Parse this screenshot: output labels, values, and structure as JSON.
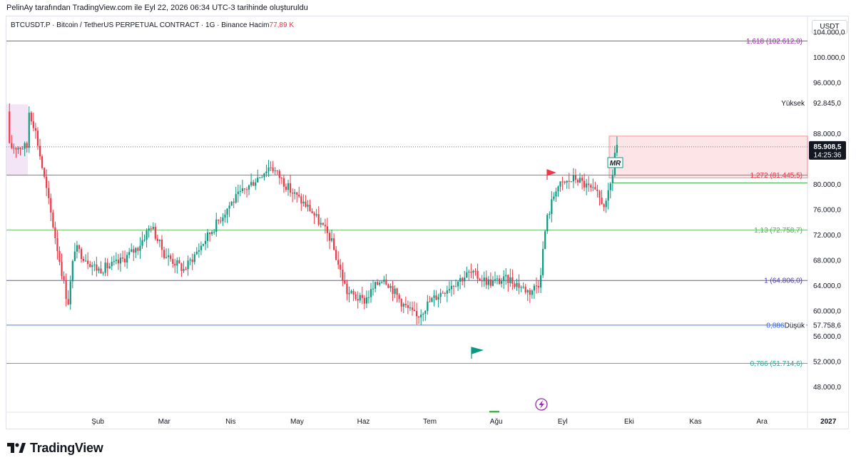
{
  "header": {
    "note": "PelinAy tarafından TradingView.com ile Eyl 22, 2026 06:34 UTC-3 tarihinde oluşturuldu"
  },
  "symbol": {
    "text": "BTCUSDT.P · Bitcoin / TetherUS PERPETUAL CONTRACT · 1G · Binance  Hacim",
    "volume": "77,89 K"
  },
  "currency": "USDT",
  "branding": {
    "name": "TradingView"
  },
  "colors": {
    "up": "#089981",
    "down": "#f23645",
    "fib_top": "#9c27b0",
    "fib_1": "#4a3aa8",
    "fib_0886": "#2962ff",
    "fib_113": "#4caf50",
    "fib_0786": "#26a69a",
    "zone": "#f23645"
  },
  "chart_data": {
    "type": "candlestick",
    "y_axis": {
      "range": [
        44000,
        106500
      ],
      "ticks": [
        {
          "value": 104000,
          "label": "104.000,0"
        },
        {
          "value": 100000,
          "label": "100.000,0"
        },
        {
          "value": 96000,
          "label": "96.000,0"
        },
        {
          "value": 88000,
          "label": "88.000,0"
        },
        {
          "value": 80000,
          "label": "80.000,0"
        },
        {
          "value": 76000,
          "label": "76.000,0"
        },
        {
          "value": 72000,
          "label": "72.000,0"
        },
        {
          "value": 68000,
          "label": "68.000,0"
        },
        {
          "value": 64000,
          "label": "64.000,0"
        },
        {
          "value": 60000,
          "label": "60.000,0"
        },
        {
          "value": 56000,
          "label": "56.000,0"
        },
        {
          "value": 52000,
          "label": "52.000,0"
        },
        {
          "value": 48000,
          "label": "48.000,0"
        }
      ]
    },
    "x_axis": {
      "labels": [
        {
          "label": "Şub",
          "month": 1
        },
        {
          "label": "Mar",
          "month": 2
        },
        {
          "label": "Nis",
          "month": 3
        },
        {
          "label": "May",
          "month": 4
        },
        {
          "label": "Haz",
          "month": 5
        },
        {
          "label": "Tem",
          "month": 6
        },
        {
          "label": "Ağu",
          "month": 7
        },
        {
          "label": "Eyl",
          "month": 8
        },
        {
          "label": "Eki",
          "month": 9
        },
        {
          "label": "Kas",
          "month": 10
        },
        {
          "label": "Ara",
          "month": 11
        },
        {
          "label": "2027",
          "month": 12
        }
      ]
    },
    "price_path": [
      [
        -0.05,
        92000
      ],
      [
        0.05,
        89000
      ],
      [
        0.3,
        75000
      ],
      [
        0.55,
        61000
      ],
      [
        0.65,
        70000
      ],
      [
        1.0,
        66500
      ],
      [
        1.3,
        67500
      ],
      [
        1.6,
        70000
      ],
      [
        1.8,
        73500
      ],
      [
        2.0,
        69000
      ],
      [
        2.3,
        66500
      ],
      [
        2.6,
        71000
      ],
      [
        3.0,
        77000
      ],
      [
        3.3,
        80000
      ],
      [
        3.6,
        83000
      ],
      [
        3.9,
        79000
      ],
      [
        4.2,
        76000
      ],
      [
        4.5,
        71500
      ],
      [
        4.75,
        63000
      ],
      [
        5.0,
        61500
      ],
      [
        5.3,
        65500
      ],
      [
        5.6,
        61000
      ],
      [
        5.8,
        59000
      ],
      [
        6.0,
        61500
      ],
      [
        6.3,
        64000
      ],
      [
        6.6,
        66000
      ],
      [
        6.9,
        64500
      ],
      [
        7.2,
        65000
      ],
      [
        7.5,
        63000
      ],
      [
        7.65,
        64500
      ],
      [
        7.75,
        74000
      ],
      [
        7.9,
        79500
      ],
      [
        8.2,
        81000
      ],
      [
        8.5,
        78500
      ],
      [
        8.65,
        76500
      ],
      [
        8.75,
        81500
      ],
      [
        8.8,
        86500
      ],
      [
        8.83,
        85900
      ]
    ],
    "levels": [
      {
        "name": "fib-1618",
        "label": "1,618 (102.612,0)",
        "value": 102612.0,
        "color": "#9c27b0"
      },
      {
        "name": "fib-1272",
        "label": "1,272 (81.445,5)",
        "value": 81445.5,
        "color": "#f23645"
      },
      {
        "name": "fib-113",
        "label": "1,13 (72.758,7)",
        "value": 72758.7,
        "color": "#4caf50"
      },
      {
        "name": "fib-1",
        "label": "1 (64.806,0)",
        "value": 64806.0,
        "color": "#4a3aa8"
      },
      {
        "name": "fib-0886",
        "label": "0,886 (57.7",
        "value": 57758.6,
        "color": "#2962ff"
      },
      {
        "name": "fib-0786",
        "label": "0,786 (51.714,6)",
        "value": 51714.6,
        "color": "#26a69a"
      }
    ],
    "high_marker": {
      "label": "Yüksek",
      "value": 92845.0,
      "text": "92.845,0"
    },
    "low_marker": {
      "label": "Düşük",
      "value": 57758.6,
      "text": "57.758,6"
    },
    "last_price": {
      "value": 85908.5,
      "text": "85.908,5",
      "countdown": "14:25:36"
    },
    "zone": {
      "top": 87600,
      "bottom": 81000,
      "start_month": 8.7
    },
    "annotation": "MR"
  }
}
